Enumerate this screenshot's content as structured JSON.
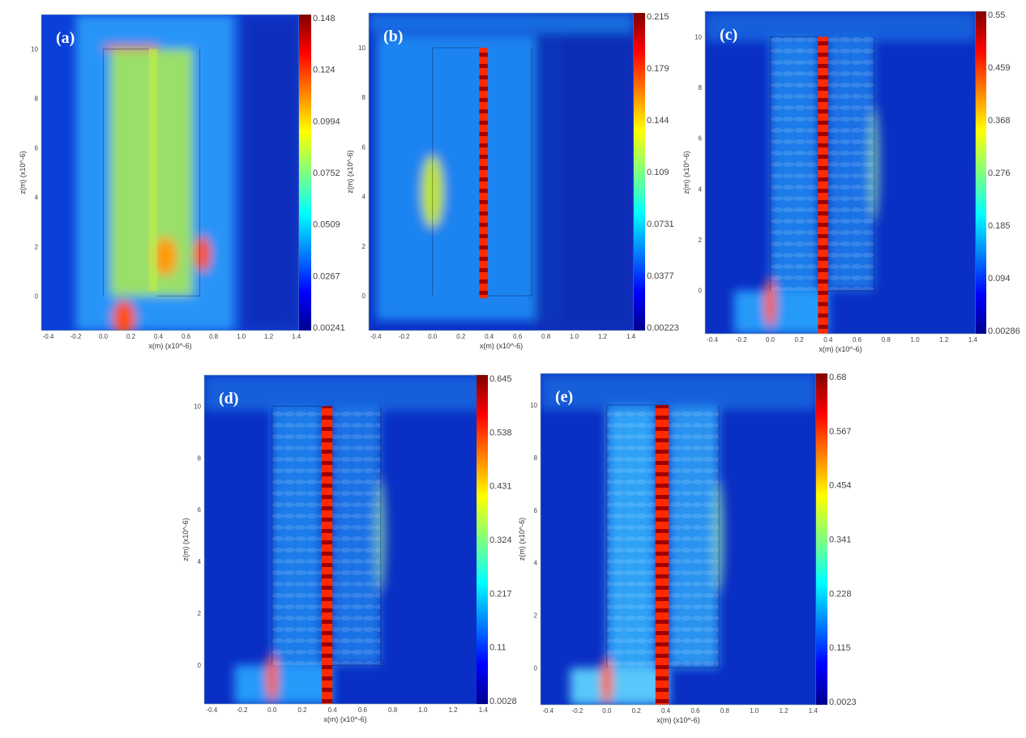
{
  "chart_data": [
    {
      "type": "heatmap",
      "panel_label": "(a)",
      "xlabel": "x(m) (x10^-6)",
      "ylabel": "z(m) (x10^-6)",
      "xlim": [
        -0.45,
        1.42
      ],
      "ylim": [
        -1.4,
        11.4
      ],
      "x_ticks": [
        "-0.4",
        "-0.2",
        "0.0",
        "0.2",
        "0.4",
        "0.6",
        "0.8",
        "1.0",
        "1.2",
        "1.4"
      ],
      "y_ticks": [
        "0",
        "2",
        "4",
        "6",
        "8",
        "10"
      ],
      "colorbar_ticks": [
        "0.148",
        "0.124",
        "0.0994",
        "0.0752",
        "0.0509",
        "0.0267",
        "0.00241"
      ],
      "colorbar_range": [
        0.00241,
        0.148
      ],
      "core": [
        0.33,
        0.39
      ],
      "edges": [
        0.0,
        0.7
      ]
    },
    {
      "type": "heatmap",
      "panel_label": "(b)",
      "xlabel": "x(m) (x10^-6)",
      "ylabel": "z(m) (x10^-6)",
      "xlim": [
        -0.45,
        1.42
      ],
      "ylim": [
        -1.4,
        11.4
      ],
      "x_ticks": [
        "-0.4",
        "-0.2",
        "0.0",
        "0.2",
        "0.4",
        "0.6",
        "0.8",
        "1.0",
        "1.2",
        "1.4"
      ],
      "y_ticks": [
        "0",
        "2",
        "4",
        "6",
        "8",
        "10"
      ],
      "colorbar_ticks": [
        "0.215",
        "0.179",
        "0.144",
        "0.109",
        "0.0731",
        "0.0377",
        "0.00223"
      ],
      "colorbar_range": [
        0.00223,
        0.215
      ],
      "core": [
        0.33,
        0.39
      ],
      "edges": [
        0.0,
        0.7
      ]
    },
    {
      "type": "heatmap",
      "panel_label": "(c)",
      "xlabel": "x(m) (x10^-6)",
      "ylabel": "z(m) (x10^-6)",
      "xlim": [
        -0.45,
        1.42
      ],
      "ylim": [
        -1.7,
        11.0
      ],
      "x_ticks": [
        "-0.4",
        "-0.2",
        "0.0",
        "0.2",
        "0.4",
        "0.6",
        "0.8",
        "1.0",
        "1.2",
        "1.4"
      ],
      "y_ticks": [
        "0",
        "2",
        "4",
        "6",
        "8",
        "10"
      ],
      "colorbar_ticks": [
        "0.55",
        "0.459",
        "0.368",
        "0.276",
        "0.185",
        "0.094",
        "0.00286"
      ],
      "colorbar_range": [
        0.00286,
        0.55
      ],
      "core": [
        0.33,
        0.4
      ],
      "edges": [
        0.0,
        0.72
      ]
    },
    {
      "type": "heatmap",
      "panel_label": "(d)",
      "xlabel": "x(m) (x10^-6)",
      "ylabel": "z(m) (x10^-6)",
      "xlim": [
        -0.45,
        1.42
      ],
      "ylim": [
        -1.5,
        11.2
      ],
      "x_ticks": [
        "-0.4",
        "-0.2",
        "0.0",
        "0.2",
        "0.4",
        "0.6",
        "0.8",
        "1.0",
        "1.2",
        "1.4"
      ],
      "y_ticks": [
        "0",
        "2",
        "4",
        "6",
        "8",
        "10"
      ],
      "colorbar_ticks": [
        "0.645",
        "0.538",
        "0.431",
        "0.324",
        "0.217",
        "0.11",
        "0.0028"
      ],
      "colorbar_range": [
        0.0028,
        0.645
      ],
      "core": [
        0.33,
        0.4
      ],
      "edges": [
        0.0,
        0.72
      ]
    },
    {
      "type": "heatmap",
      "panel_label": "(e)",
      "xlabel": "x(m) (x10^-6)",
      "ylabel": "z(m) (x10^-6)",
      "xlim": [
        -0.45,
        1.42
      ],
      "ylim": [
        -1.4,
        11.2
      ],
      "x_ticks": [
        "-0.4",
        "-0.2",
        "0.0",
        "0.2",
        "0.4",
        "0.6",
        "0.8",
        "1.0",
        "1.2",
        "1.4"
      ],
      "y_ticks": [
        "0",
        "2",
        "4",
        "6",
        "8",
        "10"
      ],
      "colorbar_ticks": [
        "0.68",
        "0.567",
        "0.454",
        "0.341",
        "0.228",
        "0.115",
        "0.0023"
      ],
      "colorbar_range": [
        0.0023,
        0.68
      ],
      "core": [
        0.33,
        0.42
      ],
      "edges": [
        0.0,
        0.76
      ]
    }
  ]
}
